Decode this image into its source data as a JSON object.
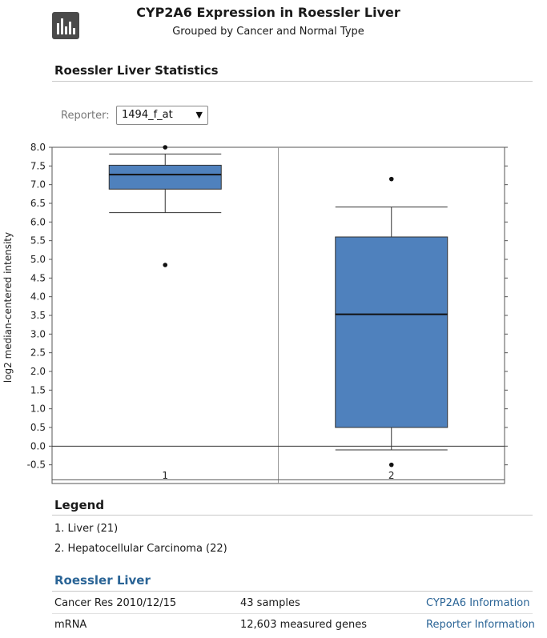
{
  "header": {
    "icon": "bar-chart-icon",
    "title": "CYP2A6 Expression in Roessler Liver",
    "subtitle": "Grouped by Cancer and Normal Type"
  },
  "statistics": {
    "heading": "Roessler Liver Statistics"
  },
  "reporter": {
    "label": "Reporter:",
    "selected": "1494_f_at"
  },
  "chart_data": {
    "type": "box",
    "ylabel": "log2 median-centered intensity",
    "ylim": [
      -1.0,
      8.0
    ],
    "yticks": [
      8.0,
      7.5,
      7.0,
      6.5,
      6.0,
      5.5,
      5.0,
      4.5,
      4.0,
      3.5,
      3.0,
      2.5,
      2.0,
      1.5,
      1.0,
      0.5,
      0.0,
      -0.5
    ],
    "categories": [
      "1",
      "2"
    ],
    "boxes": [
      {
        "category": "1",
        "whisker_low": 6.25,
        "q1": 6.88,
        "median": 7.27,
        "q3": 7.52,
        "whisker_high": 7.82,
        "outliers": [
          8.0,
          4.85
        ]
      },
      {
        "category": "2",
        "whisker_low": -0.1,
        "q1": 0.5,
        "median": 3.53,
        "q3": 5.6,
        "whisker_high": 6.4,
        "outliers": [
          7.15,
          -0.5
        ]
      }
    ],
    "reference_line": 0.0,
    "box_color": "#4f81bd",
    "grid": false
  },
  "legend": {
    "heading": "Legend",
    "items": [
      "1. Liver (21)",
      "2. Hepatocellular Carcinoma (22)"
    ]
  },
  "dataset": {
    "title": "Roessler Liver",
    "rows": [
      {
        "left": "Cancer Res 2010/12/15",
        "mid": "43 samples",
        "link": "CYP2A6 Information"
      },
      {
        "left": "mRNA",
        "mid": "12,603 measured genes",
        "link": "Reporter Information"
      }
    ]
  }
}
